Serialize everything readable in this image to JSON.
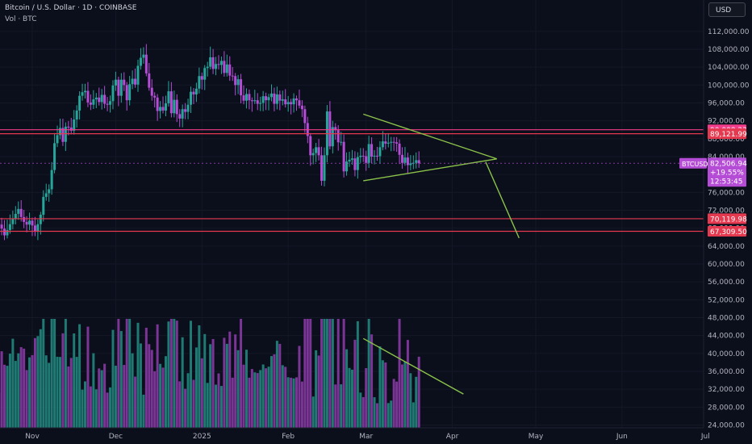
{
  "header": {
    "title": "Bitcoin / U.S. Dollar · 1D · COINBASE",
    "vol_label": "Vol · BTC",
    "currency": "USD"
  },
  "chart_data": {
    "type": "candlestick",
    "title": "Bitcoin / U.S. Dollar · 1D · COINBASE",
    "currency": "USD",
    "y_ticks": [
      24000,
      28000,
      32000,
      36000,
      40000,
      44000,
      48000,
      52000,
      56000,
      60000,
      64000,
      68000,
      72000,
      76000,
      80000,
      84000,
      88000,
      92000,
      96000,
      100000,
      104000,
      108000,
      112000
    ],
    "y_tick_labels": [
      "24,000.00",
      "28,000.00",
      "32,000.00",
      "36,000.00",
      "40,000.00",
      "44,000.00",
      "48,000.00",
      "52,000.00",
      "56,000.00",
      "60,000.00",
      "64,000.00",
      "68,000.00",
      "72,000.00",
      "76,000.00",
      "80,000.00",
      "84,000.00",
      "88,000.00",
      "92,000.00",
      "96,000.00",
      "100,000.00",
      "104,000.00",
      "108,000.00",
      "112,000.00"
    ],
    "x_axis_labels": [
      {
        "label": "Nov",
        "date": "2024-11-01"
      },
      {
        "label": "Dec",
        "date": "2024-12-01"
      },
      {
        "label": "2025",
        "date": "2025-01-01"
      },
      {
        "label": "Feb",
        "date": "2025-02-01"
      },
      {
        "label": "Mar",
        "date": "2025-03-01"
      },
      {
        "label": "Apr",
        "date": "2025-04-01"
      },
      {
        "label": "May",
        "date": "2025-05-01"
      },
      {
        "label": "Jun",
        "date": "2025-06-01"
      },
      {
        "label": "Jul",
        "date": "2025-07-01"
      }
    ],
    "start_date": "2024-10-09",
    "closes": [
      62500,
      61800,
      63200,
      64100,
      62700,
      65300,
      66800,
      67400,
      68200,
      68500,
      69100,
      68800,
      67900,
      66400,
      67600,
      68900,
      70100,
      71200,
      72300,
      70500,
      69400,
      68800,
      69700,
      68600,
      67300,
      68900,
      71000,
      75000,
      75800,
      76700,
      81000,
      87000,
      88800,
      90400,
      87300,
      90700,
      90500,
      89800,
      92300,
      94300,
      97600,
      98400,
      98700,
      96100,
      95600,
      96800,
      97200,
      96200,
      97800,
      95800,
      95600,
      96400,
      99900,
      101200,
      97600,
      101200,
      100000,
      96600,
      100200,
      101400,
      100100,
      104300,
      106100,
      106800,
      102600,
      99400,
      97600,
      97200,
      94200,
      95100,
      94300,
      95900,
      98600,
      93700,
      96700,
      93500,
      92500,
      94600,
      94000,
      95600,
      98500,
      97900,
      99200,
      102000,
      101200,
      103800,
      104100,
      106200,
      103600,
      104700,
      104500,
      105400,
      102700,
      104600,
      102100,
      102000,
      100000,
      101300,
      97700,
      96500,
      98000,
      96600,
      96400,
      96600,
      95800,
      96000,
      97500,
      96600,
      97300,
      98100,
      95800,
      97900,
      96500,
      96800,
      95700,
      96200,
      95700,
      97000,
      96600,
      95400,
      94600,
      91500,
      88600,
      84300,
      84800,
      86100,
      84300,
      78600,
      84300,
      94100,
      86300,
      90600,
      89900,
      87200,
      87300,
      80700,
      82900,
      83300,
      83600,
      81000,
      83900,
      84200,
      84100,
      82600,
      86800,
      84000,
      84200,
      84100,
      86100,
      87400,
      86900,
      87100,
      87300,
      87200,
      86900,
      84400,
      82600,
      83800,
      82100,
      82500,
      82600,
      83200,
      82506
    ],
    "current_price": 82506.94,
    "current_symbol": "BTCUSD",
    "current_change": "+19.55%",
    "countdown": "12:53:45",
    "horizontal_levels": [
      {
        "price": 90008.23,
        "label": "90,008.23",
        "color": "#f23c8a"
      },
      {
        "price": 89121.99,
        "label": "89,121.99",
        "color": "#e53950"
      },
      {
        "price": 70119.98,
        "label": "70,119.98",
        "color": "#e53950"
      },
      {
        "price": 67309.5,
        "label": "67,309.50",
        "color": "#e53950"
      }
    ],
    "trendlines": [
      {
        "from": {
          "date": "2025-02-28",
          "price": 93500
        },
        "to": {
          "date": "2025-04-17",
          "price": 83500
        },
        "color": "#8bc34a"
      },
      {
        "from": {
          "date": "2025-02-28",
          "price": 78600
        },
        "to": {
          "date": "2025-04-17",
          "price": 83500
        },
        "color": "#8bc34a"
      },
      {
        "from": {
          "date": "2025-04-13",
          "price": 82800
        },
        "to": {
          "date": "2025-04-25",
          "price": 65800
        },
        "color": "#8bc34a"
      }
    ],
    "volume_trendline": {
      "from": {
        "date": "2025-02-28",
        "volume": 0.82
      },
      "to": {
        "date": "2025-04-05",
        "volume": 0.31
      },
      "color": "#8bc34a"
    },
    "colors": {
      "up": "#26a69a",
      "down": "#b44cd6",
      "up_volume": "#1f7a74",
      "down_volume": "#7b3596",
      "background": "#0b0e1b",
      "grid": "#141827",
      "text": "#b2b5be",
      "price_badge": "#b44cd6"
    }
  }
}
